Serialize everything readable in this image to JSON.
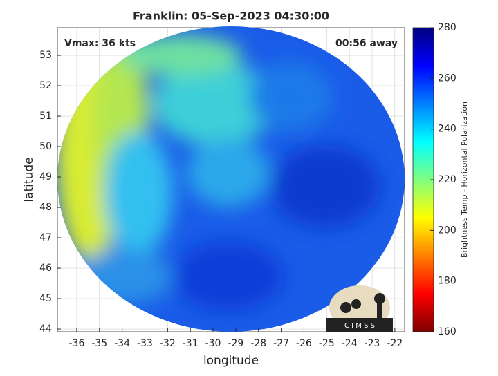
{
  "chart_data": {
    "type": "image",
    "title": "Franklin: 05-Sep-2023 04:30:00",
    "annotations": [
      "Vmax: 36 kts",
      "00:56 away"
    ],
    "x_label": "longitude",
    "y_label": "latitude",
    "xlim": [
      -36.85,
      -21.57
    ],
    "ylim": [
      43.91,
      53.91
    ],
    "xticks": [
      -36,
      -35,
      -34,
      -33,
      -32,
      -31,
      -30,
      -29,
      -28,
      -27,
      -26,
      -25,
      -24,
      -23,
      -22
    ],
    "yticks": [
      44,
      45,
      46,
      47,
      48,
      49,
      50,
      51,
      52,
      53
    ],
    "grid": true,
    "colorbar": {
      "label": "Brightness Temp - Horizontal Polarization",
      "lim": [
        160,
        280
      ],
      "ticks": [
        160,
        180,
        200,
        220,
        240,
        260,
        280
      ],
      "colormap": [
        "#7f0000",
        "#ff0000",
        "#ff7f00",
        "#ffff00",
        "#7fff7f",
        "#00ffff",
        "#007fff",
        "#0000ff",
        "#00007f"
      ]
    },
    "logo": "C I M S S"
  }
}
